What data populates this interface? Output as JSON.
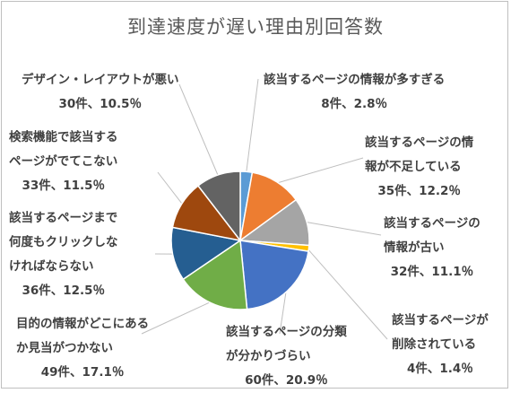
{
  "chart_data": {
    "type": "pie",
    "title": "到達速度が遅い理由別回答数",
    "slices": [
      {
        "label_lines": [
          "該当するページの情報が多すぎる"
        ],
        "value": 8,
        "count_text": "8件",
        "percent_text": "2.8％",
        "color": "#5B9BD5"
      },
      {
        "label_lines": [
          "該当するページの情",
          "報が不足している"
        ],
        "value": 35,
        "count_text": "35件",
        "percent_text": "12.2％",
        "color": "#ED7D31"
      },
      {
        "label_lines": [
          "該当するページの",
          "情報が古い"
        ],
        "value": 32,
        "count_text": "32件",
        "percent_text": "11.1％",
        "color": "#A5A5A5"
      },
      {
        "label_lines": [
          "該当するページが",
          "削除されている"
        ],
        "value": 4,
        "count_text": "4件",
        "percent_text": "1.4％",
        "color": "#FFC000"
      },
      {
        "label_lines": [
          "該当するページの分類",
          "が分かりづらい"
        ],
        "value": 60,
        "count_text": "60件",
        "percent_text": "20.9％",
        "color": "#4472C4"
      },
      {
        "label_lines": [
          "目的の情報がどこにある",
          "か見当がつかない"
        ],
        "value": 49,
        "count_text": "49件",
        "percent_text": "17.1％",
        "color": "#70AD47"
      },
      {
        "label_lines": [
          "該当するページまで",
          "何度もクリックしな",
          "ければならない"
        ],
        "value": 36,
        "count_text": "36件",
        "percent_text": "12.5％",
        "color": "#255E91"
      },
      {
        "label_lines": [
          "検索機能で該当する",
          "ページがでてこない"
        ],
        "value": 33,
        "count_text": "33件",
        "percent_text": "11.5％",
        "color": "#9E480E"
      },
      {
        "label_lines": [
          "デザイン・レイアウトが悪い"
        ],
        "value": 30,
        "count_text": "30件",
        "percent_text": "10.5％",
        "color": "#636363"
      }
    ]
  }
}
